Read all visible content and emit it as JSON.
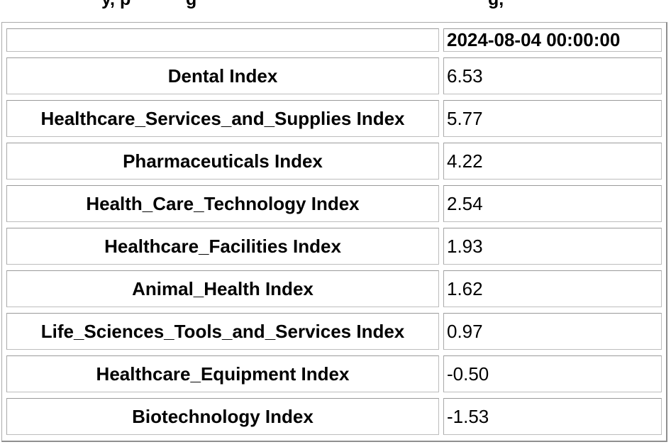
{
  "top_cropped_line": {
    "fragments": [
      {
        "text": "y, p"
      },
      {
        "text": "g"
      },
      {
        "text": "g,"
      }
    ]
  },
  "table": {
    "header": {
      "empty_cell": "",
      "date": "2024-08-04 00:00:00"
    },
    "rows": [
      {
        "label": "Dental Index",
        "value": "6.53"
      },
      {
        "label": "Healthcare_Services_and_Supplies Index",
        "value": "5.77"
      },
      {
        "label": "Pharmaceuticals Index",
        "value": "4.22"
      },
      {
        "label": "Health_Care_Technology Index",
        "value": "2.54"
      },
      {
        "label": "Healthcare_Facilities Index",
        "value": "1.93"
      },
      {
        "label": "Animal_Health Index",
        "value": "1.62"
      },
      {
        "label": "Life_Sciences_Tools_and_Services Index",
        "value": "0.97"
      },
      {
        "label": "Healthcare_Equipment Index",
        "value": "-0.50"
      },
      {
        "label": "Biotechnology Index",
        "value": "-1.53"
      }
    ]
  },
  "colors": {
    "text": "#000000",
    "background": "#ffffff",
    "cell_border": "#a8a8a8",
    "outer_border": "#8f8f8f"
  }
}
